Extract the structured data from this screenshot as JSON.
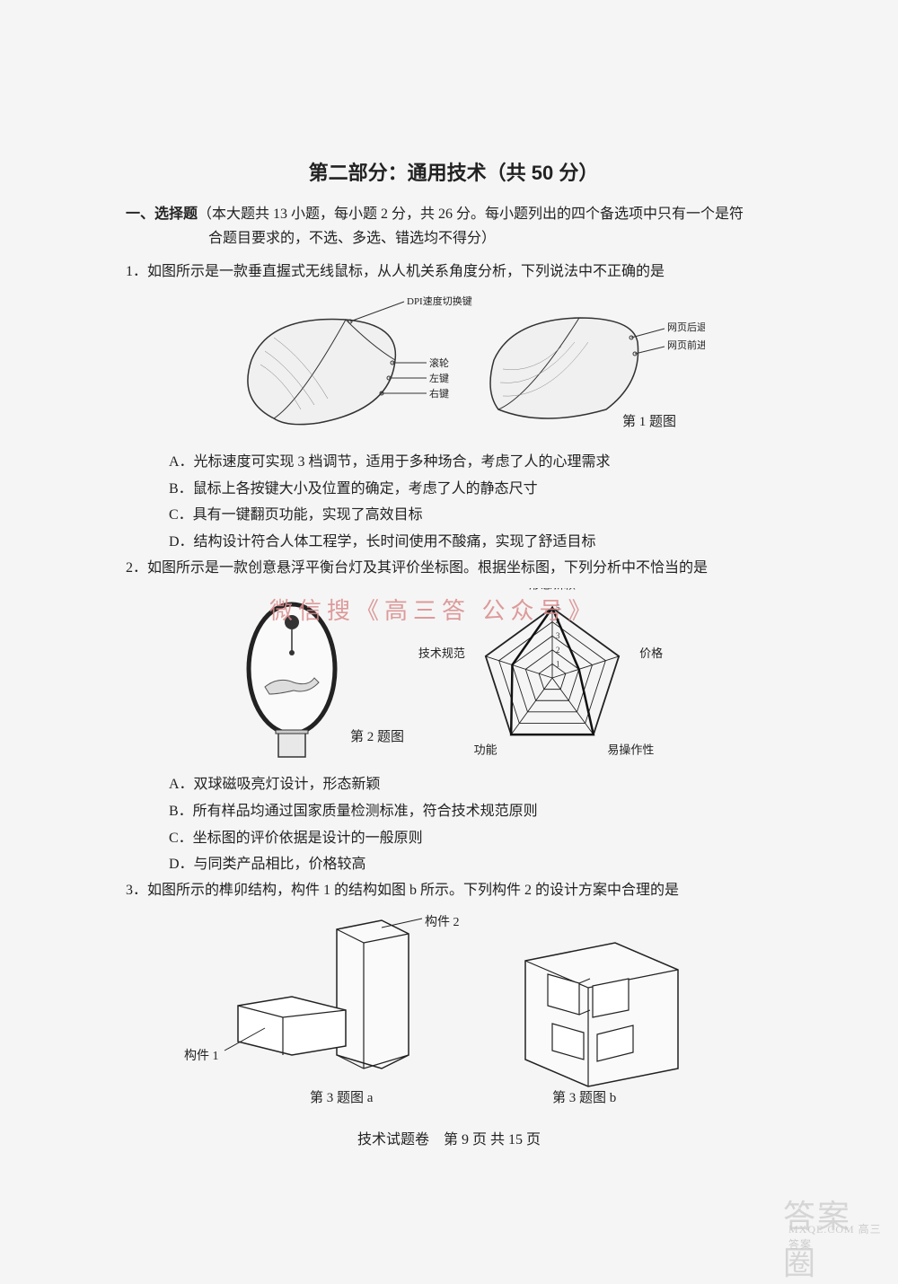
{
  "section_title": "第二部分：通用技术（共 50 分）",
  "instruction": {
    "label": "一、选择题",
    "text1": "（本大题共 13 小题，每小题 2 分，共 26 分。每小题列出的四个备选项中只有一个是符",
    "text2": "合题目要求的，不选、多选、错选均不得分）"
  },
  "q1": {
    "num": "1．",
    "text": "如图所示是一款垂直握式无线鼠标，从人机关系角度分析，下列说法中不正确的是",
    "A": "A．光标速度可实现 3 档调节，适用于多种场合，考虑了人的心理需求",
    "B": "B．鼠标上各按键大小及位置的确定，考虑了人的静态尺寸",
    "C": "C．具有一键翻页功能，实现了高效目标",
    "D": "D．结构设计符合人体工程学，长时间使用不酸痛，实现了舒适目标",
    "labels": {
      "dpi": "DPI速度切换键",
      "scroll": "滚轮",
      "left": "左键",
      "right": "右键",
      "back": "网页后退键",
      "fwd": "网页前进键"
    },
    "caption": "第 1 题图"
  },
  "q2": {
    "num": "2．",
    "text": "如图所示是一款创意悬浮平衡台灯及其评价坐标图。根据坐标图，下列分析中不恰当的是",
    "A": "A．双球磁吸亮灯设计，形态新颖",
    "B": "B．所有样品均通过国家质量检测标准，符合技术规范原则",
    "C": "C．坐标图的评价依据是设计的一般原则",
    "D": "D．与同类产品相比，价格较高",
    "caption": "第 2 题图",
    "radar": {
      "axes": [
        "形态新颖",
        "价格",
        "易操作性",
        "功能",
        "技术规范"
      ],
      "ticks": [
        "1",
        "2",
        "3",
        "4",
        "5"
      ],
      "values": [
        5,
        2,
        5,
        5,
        3
      ],
      "max": 5,
      "stroke": "#222",
      "bg": "#fafafa"
    }
  },
  "q3": {
    "num": "3．",
    "text": "如图所示的榫卯结构，构件 1 的结构如图 b 所示。下列构件 2 的设计方案中合理的是",
    "label_part1": "构件 1",
    "label_part2": "构件 2",
    "caption_a": "第 3 题图 a",
    "caption_b": "第 3 题图 b"
  },
  "footer": "技术试题卷　第 9 页 共 15 页",
  "watermark_red": "微信搜《高三答 公众号》",
  "corner": {
    "big": "答案圈",
    "small": "MXQE.COM  高三答案"
  }
}
